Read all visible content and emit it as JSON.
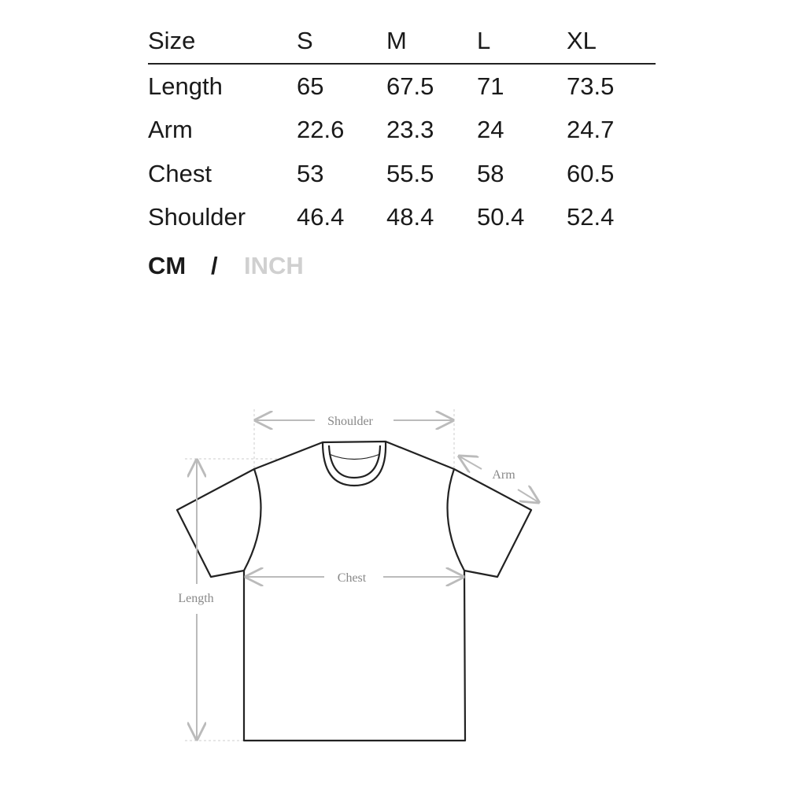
{
  "table": {
    "headers": [
      "Size",
      "S",
      "M",
      "L",
      "XL"
    ],
    "rows": [
      [
        "Length",
        "65",
        "67.5",
        "71",
        "73.5"
      ],
      [
        "Arm",
        "22.6",
        "23.3",
        "24",
        "24.7"
      ],
      [
        "Chest",
        "53",
        "55.5",
        "58",
        "60.5"
      ],
      [
        "Shoulder",
        "46.4",
        "48.4",
        "50.4",
        "52.4"
      ]
    ]
  },
  "units": {
    "active": "CM",
    "separator": "/",
    "inactive": "INCH",
    "active_color": "#1a1a1a",
    "inactive_color": "#d0d0d0"
  },
  "diagram": {
    "shoulder": "Shoulder",
    "arm": "Arm",
    "chest": "Chest",
    "length": "Length"
  }
}
